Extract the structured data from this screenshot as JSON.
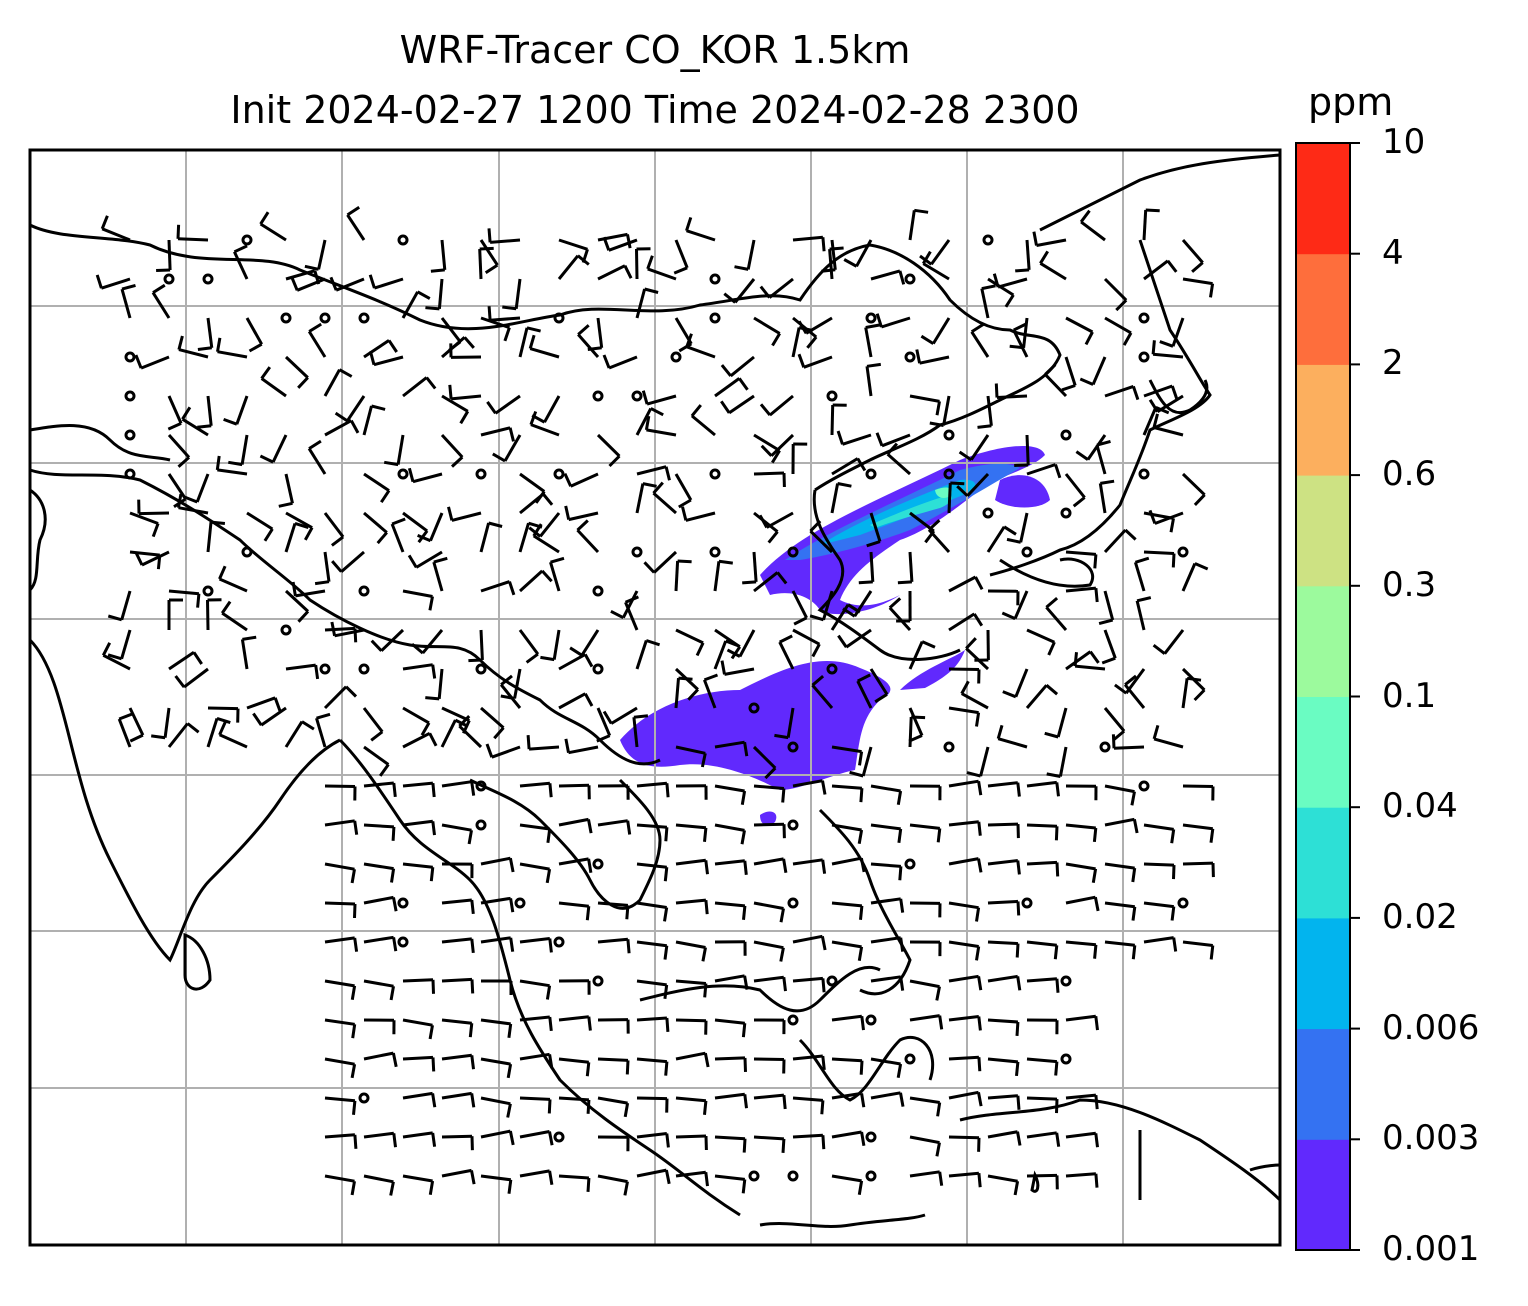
{
  "title": {
    "line1": "WRF-Tracer CO_KOR 1.5km",
    "line2": "Init 2024-02-27 1200 Time 2024-02-28 2300"
  },
  "colorbar": {
    "unit": "ppm",
    "levels": [
      "0.001",
      "0.003",
      "0.006",
      "0.02",
      "0.04",
      "0.1",
      "0.3",
      "0.6",
      "2",
      "4",
      "10"
    ],
    "colors": [
      "#6129fd",
      "#3472f2",
      "#02b4ee",
      "#2de0d6",
      "#6afcc2",
      "#9cfa9d",
      "#cde283",
      "#fcaf5e",
      "#fe6e3c",
      "#fe2a16"
    ]
  },
  "map": {
    "gridlines": "on",
    "coastline_color": "#000000",
    "grid_color": "#b0b0b0"
  }
}
